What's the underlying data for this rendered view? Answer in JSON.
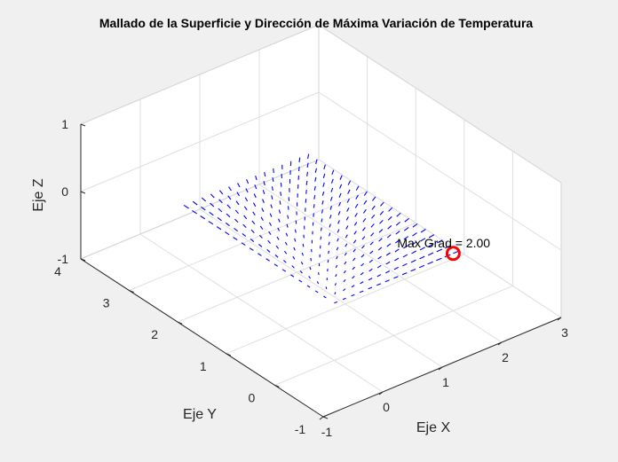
{
  "chart_data": {
    "type": "quiver3d",
    "title": "Mallado de la Superficie y Dirección de Máxima Variación de Temperatura",
    "xlabel": "Eje X",
    "ylabel": "Eje Y",
    "zlabel": "Eje Z",
    "xlim": [
      -1,
      3
    ],
    "ylim": [
      -1,
      4
    ],
    "zlim": [
      -1,
      1
    ],
    "x_ticks": [
      "-1",
      "0",
      "1",
      "2",
      "3"
    ],
    "y_ticks": [
      "-1",
      "0",
      "1",
      "2",
      "3",
      "4"
    ],
    "z_ticks": [
      "-1",
      "0",
      "1"
    ],
    "grid": true,
    "mesh": {
      "x_range": [
        0,
        2
      ],
      "y_range": [
        0,
        3
      ],
      "z_plane": -0.15
    },
    "arrow_color": "#0000ff",
    "annotation": {
      "text": "Max Grad = 2.00",
      "point": {
        "x": 2,
        "y": 0,
        "z": -0.15
      },
      "marker": "circle",
      "marker_color": "#ff0000"
    }
  }
}
